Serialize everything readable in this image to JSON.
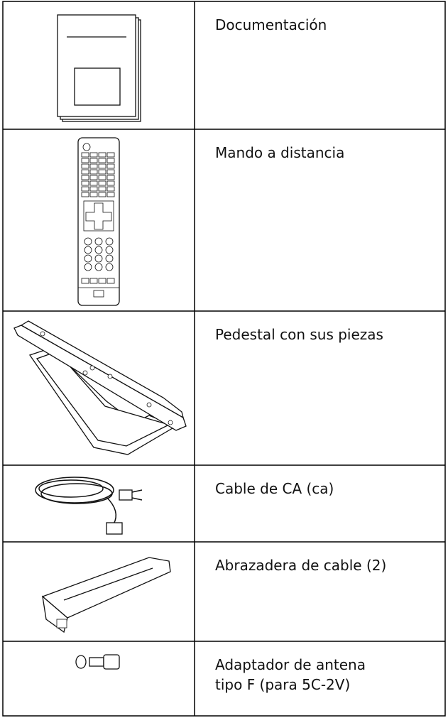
{
  "table": {
    "rows": [
      {
        "lines": [
          "Documentación"
        ]
      },
      {
        "lines": [
          "Mando a distancia"
        ]
      },
      {
        "lines": [
          "Pedestal con sus piezas"
        ]
      },
      {
        "lines": [
          "Cable de CA (ca)"
        ]
      },
      {
        "lines": [
          "Abrazadera de cable (2)"
        ]
      },
      {
        "lines": [
          "Adaptador de antena",
          "tipo F (para 5C-2V)"
        ]
      }
    ]
  }
}
